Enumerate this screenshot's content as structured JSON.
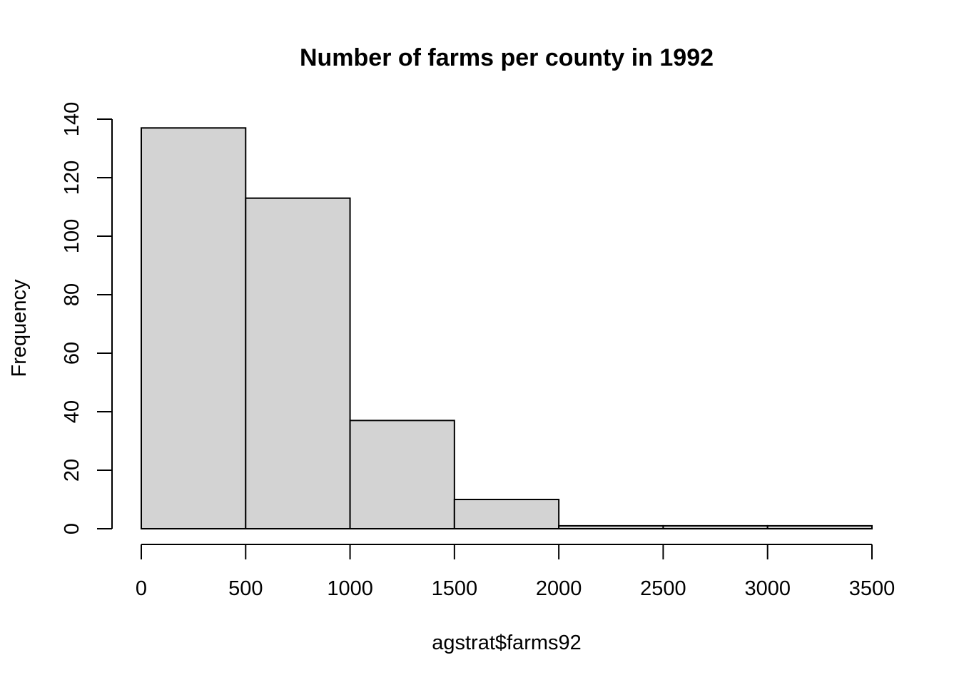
{
  "chart_data": {
    "type": "bar",
    "title": "Number of farms per county in 1992",
    "xlabel": "agstrat$farms92",
    "ylabel": "Frequency",
    "bins": [
      {
        "start": 0,
        "end": 500,
        "count": 137
      },
      {
        "start": 500,
        "end": 1000,
        "count": 113
      },
      {
        "start": 1000,
        "end": 1500,
        "count": 37
      },
      {
        "start": 1500,
        "end": 2000,
        "count": 10
      },
      {
        "start": 2000,
        "end": 2500,
        "count": 1
      },
      {
        "start": 2500,
        "end": 3000,
        "count": 1
      },
      {
        "start": 3000,
        "end": 3500,
        "count": 1
      }
    ],
    "xticks": [
      0,
      500,
      1000,
      1500,
      2000,
      2500,
      3000,
      3500
    ],
    "yticks": [
      0,
      20,
      40,
      60,
      80,
      100,
      120,
      140
    ],
    "xlim": [
      0,
      3500
    ],
    "ylim": [
      0,
      140
    ],
    "grid": false,
    "bar_fill": "#d3d3d3",
    "bar_stroke": "#000000"
  }
}
